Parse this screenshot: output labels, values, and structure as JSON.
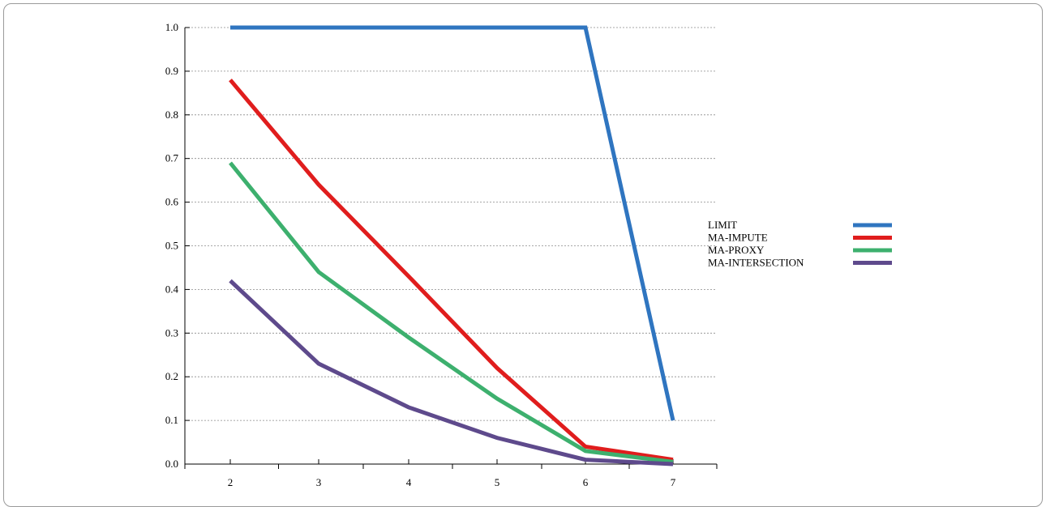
{
  "chart_data": {
    "type": "line",
    "title": "",
    "xlabel": "",
    "ylabel": "",
    "x": [
      2,
      3,
      4,
      5,
      6,
      7
    ],
    "xlim": [
      2,
      7
    ],
    "ylim": [
      0,
      1
    ],
    "x_ticks": [
      "2",
      "3",
      "4",
      "5",
      "6",
      "7"
    ],
    "y_ticks": [
      "0.0",
      "0.1",
      "0.2",
      "0.3",
      "0.4",
      "0.5",
      "0.6",
      "0.7",
      "0.8",
      "0.9",
      "1.0"
    ],
    "grid": "horizontal dotted",
    "legend_position": "right",
    "series": [
      {
        "name": "LIMIT",
        "color": "#2f75c0",
        "values": [
          1.0,
          1.0,
          1.0,
          1.0,
          1.0,
          0.1
        ]
      },
      {
        "name": "MA-IMPUTE",
        "color": "#e01d1d",
        "values": [
          0.88,
          0.64,
          0.43,
          0.22,
          0.04,
          0.01
        ]
      },
      {
        "name": "MA-PROXY",
        "color": "#3db06e",
        "values": [
          0.69,
          0.44,
          0.29,
          0.15,
          0.03,
          0.005
        ]
      },
      {
        "name": "MA-INTERSECTION",
        "color": "#5e4a8c",
        "values": [
          0.42,
          0.23,
          0.13,
          0.06,
          0.01,
          0.0
        ]
      }
    ]
  }
}
